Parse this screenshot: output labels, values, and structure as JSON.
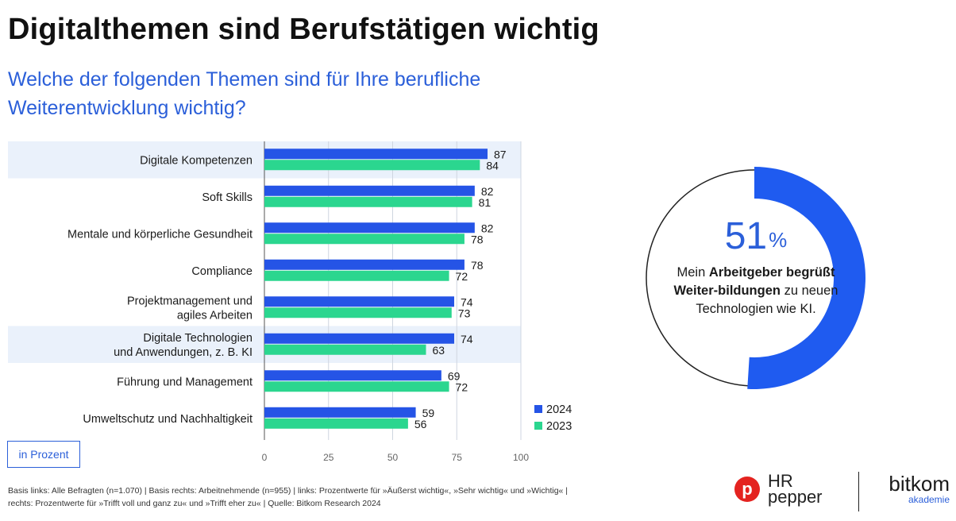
{
  "header": {
    "title": "Digitalthemen sind Berufstätigen wichtig",
    "subtitle": "Welche der folgenden Themen sind für Ihre berufliche Weiterentwicklung wichtig?"
  },
  "chart_data": [
    {
      "type": "bar",
      "orientation": "horizontal",
      "categories": [
        "Digitale Kompetenzen",
        "Soft Skills",
        "Mentale und körperliche Gesundheit",
        "Compliance",
        "Projektmanagement und agiles Arbeiten",
        "Digitale Technologien und Anwendungen, z. B. KI",
        "Führung und Management",
        "Umweltschutz und Nachhaltigkeit"
      ],
      "category_lines": [
        [
          "Digitale Kompetenzen"
        ],
        [
          "Soft Skills"
        ],
        [
          "Mentale und körperliche Gesundheit"
        ],
        [
          "Compliance"
        ],
        [
          "Projektmanagement und",
          "agiles Arbeiten"
        ],
        [
          "Digitale Technologien",
          "und Anwendungen, z. B. KI"
        ],
        [
          "Führung und Management"
        ],
        [
          "Umweltschutz und Nachhaltigkeit"
        ]
      ],
      "highlighted_categories": [
        0,
        5
      ],
      "series": [
        {
          "name": "2024",
          "color": "#2554e6",
          "values": [
            87,
            82,
            82,
            78,
            74,
            74,
            69,
            59
          ]
        },
        {
          "name": "2023",
          "color": "#2bd68f",
          "values": [
            84,
            81,
            78,
            72,
            73,
            63,
            72,
            56
          ]
        }
      ],
      "xlim": [
        0,
        100
      ],
      "xticks": [
        "0",
        "25",
        "50",
        "75",
        "100"
      ],
      "grid": true,
      "legend_position": "bottom-right"
    },
    {
      "type": "pie",
      "variant": "donut",
      "values": [
        51,
        49
      ],
      "value_label": "51",
      "unit": "%",
      "caption_parts": [
        {
          "text": "Mein ",
          "bold": false
        },
        {
          "text": "Arbeitgeber begrüßt Weiter-bildungen",
          "bold": true
        },
        {
          "text": " zu neuen Technologien wie KI.",
          "bold": false
        }
      ],
      "colors": {
        "filled": "#1f5bf0",
        "rest": "#ffffff",
        "outline": "#222222"
      }
    }
  ],
  "unit_label": "in Prozent",
  "footnote": {
    "line1": "Basis links: Alle Befragten (n=1.070) | Basis rechts: Arbeitnehmende (n=955) | links: Prozentwerte für »Äußerst wichtig«, »Sehr wichtig« und »Wichtig« |",
    "line2": "rechts: Prozentwerte für »Trifft voll und ganz zu« und »Trifft eher zu« | Quelle: Bitkom Research 2024"
  },
  "logos": {
    "hr_pepper_line1": "HR",
    "hr_pepper_line2": "pepper",
    "hr_pepper_mark": "p",
    "bitkom_name": "bitkom",
    "bitkom_sub": "akademie"
  },
  "colors": {
    "accent": "#2b5fd9",
    "series_2024": "#2554e6",
    "series_2023": "#2bd68f",
    "highlight_row": "#eaf1fb",
    "grid": "#cfd6e0"
  },
  "icons": [
    "hr-pepper-logo-icon",
    "bitkom-logo-icon"
  ]
}
